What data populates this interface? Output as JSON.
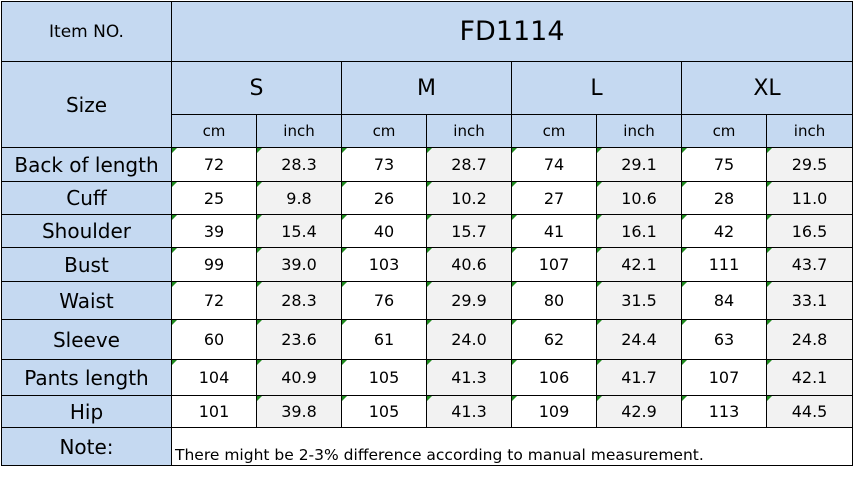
{
  "header": {
    "item_label": "Item NO.",
    "item_value": "FD1114",
    "size_label": "Size",
    "sizes": [
      "S",
      "M",
      "L",
      "XL"
    ],
    "units": [
      "cm",
      "inch",
      "cm",
      "inch",
      "cm",
      "inch",
      "cm",
      "inch"
    ]
  },
  "rows": [
    {
      "label": "Back of length",
      "values": [
        "72",
        "28.3",
        "73",
        "28.7",
        "74",
        "29.1",
        "75",
        "29.5"
      ]
    },
    {
      "label": "Cuff",
      "values": [
        "25",
        "9.8",
        "26",
        "10.2",
        "27",
        "10.6",
        "28",
        "11.0"
      ]
    },
    {
      "label": "Shoulder",
      "values": [
        "39",
        "15.4",
        "40",
        "15.7",
        "41",
        "16.1",
        "42",
        "16.5"
      ]
    },
    {
      "label": "Bust",
      "values": [
        "99",
        "39.0",
        "103",
        "40.6",
        "107",
        "42.1",
        "111",
        "43.7"
      ]
    },
    {
      "label": "Waist",
      "values": [
        "72",
        "28.3",
        "76",
        "29.9",
        "80",
        "31.5",
        "84",
        "33.1"
      ]
    },
    {
      "label": "Sleeve",
      "values": [
        "60",
        "23.6",
        "61",
        "24.0",
        "62",
        "24.4",
        "63",
        "24.8"
      ]
    },
    {
      "label": "Pants length",
      "values": [
        "104",
        "40.9",
        "105",
        "41.3",
        "106",
        "41.7",
        "107",
        "42.1"
      ]
    },
    {
      "label": "Hip",
      "values": [
        "101",
        "39.8",
        "105",
        "41.3",
        "109",
        "42.9",
        "113",
        "44.5"
      ]
    }
  ],
  "note": {
    "label": "Note:",
    "text": "There might be 2-3% difference according to manual measurement."
  },
  "colors": {
    "header_bg": "#c5d9f1",
    "alt_cell_bg": "#f2f2f2",
    "corner_mark": "#1e8a1e"
  }
}
